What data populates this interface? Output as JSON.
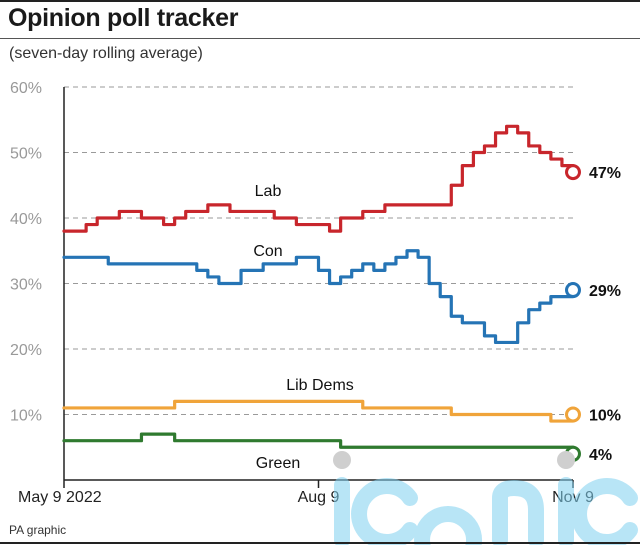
{
  "header": {
    "title": "Opinion poll tracker",
    "subtitle": "(seven-day rolling average)"
  },
  "footer": {
    "source": "PA graphic"
  },
  "colors": {
    "lab": "#c8262c",
    "con": "#2574b5",
    "libdem": "#f0a43a",
    "green": "#2f7a2f",
    "grid": "#9a9a9a",
    "axis": "#222222"
  },
  "watermark": {
    "text": "iconic"
  },
  "chart_data": {
    "type": "line",
    "title": "Opinion poll tracker",
    "subtitle": "(seven-day rolling average)",
    "xlabel": "",
    "ylabel": "",
    "ylim": [
      0,
      60
    ],
    "yticks": [
      "10%",
      "20%",
      "30%",
      "40%",
      "50%",
      "60%"
    ],
    "ytick_values": [
      10,
      20,
      30,
      40,
      50,
      60
    ],
    "xticks": [
      "May 9 2022",
      "Aug 9",
      "Nov 9"
    ],
    "xtick_positions": [
      0,
      92,
      184
    ],
    "xlim": [
      0,
      184
    ],
    "grid": true,
    "legend": "none (series labelled directly on lines)",
    "series": [
      {
        "name": "Lab",
        "key": "lab",
        "end_label": "47%",
        "x": [
          0,
          8,
          12,
          20,
          28,
          36,
          40,
          44,
          52,
          60,
          68,
          76,
          84,
          92,
          96,
          100,
          108,
          112,
          116,
          120,
          128,
          136,
          140,
          144,
          148,
          152,
          156,
          160,
          164,
          168,
          172,
          176,
          180,
          184
        ],
        "values": [
          38,
          39,
          40,
          41,
          40,
          39,
          40,
          41,
          42,
          41,
          41,
          40,
          39,
          39,
          38,
          40,
          41,
          41,
          42,
          42,
          42,
          42,
          45,
          48,
          50,
          51,
          53,
          54,
          53,
          51,
          50,
          49,
          48,
          47
        ]
      },
      {
        "name": "Con",
        "key": "con",
        "end_label": "29%",
        "x": [
          0,
          8,
          16,
          24,
          32,
          40,
          48,
          52,
          56,
          64,
          72,
          80,
          84,
          88,
          92,
          96,
          100,
          104,
          108,
          112,
          116,
          120,
          124,
          128,
          132,
          136,
          140,
          144,
          148,
          152,
          156,
          160,
          164,
          168,
          172,
          176,
          180,
          184
        ],
        "values": [
          34,
          34,
          33,
          33,
          33,
          33,
          32,
          31,
          30,
          32,
          33,
          33,
          34,
          34,
          32,
          30,
          31,
          32,
          33,
          32,
          33,
          34,
          35,
          34,
          30,
          28,
          25,
          24,
          24,
          22,
          21,
          21,
          24,
          26,
          27,
          28,
          28,
          29
        ]
      },
      {
        "name": "Lib Dems",
        "key": "libdem",
        "end_label": "10%",
        "x": [
          0,
          20,
          40,
          60,
          80,
          100,
          108,
          120,
          140,
          160,
          170,
          176,
          184
        ],
        "values": [
          11,
          11,
          12,
          12,
          12,
          12,
          11,
          11,
          10,
          10,
          10,
          9,
          10
        ],
        "label_y": 12
      },
      {
        "name": "Green",
        "key": "green",
        "end_label": "4%",
        "x": [
          0,
          20,
          28,
          40,
          60,
          80,
          92,
          100,
          120,
          140,
          160,
          170,
          184
        ],
        "values": [
          6,
          6,
          7,
          6,
          6,
          6,
          6,
          5,
          5,
          5,
          5,
          5,
          4
        ],
        "label_y": 2
      }
    ]
  }
}
